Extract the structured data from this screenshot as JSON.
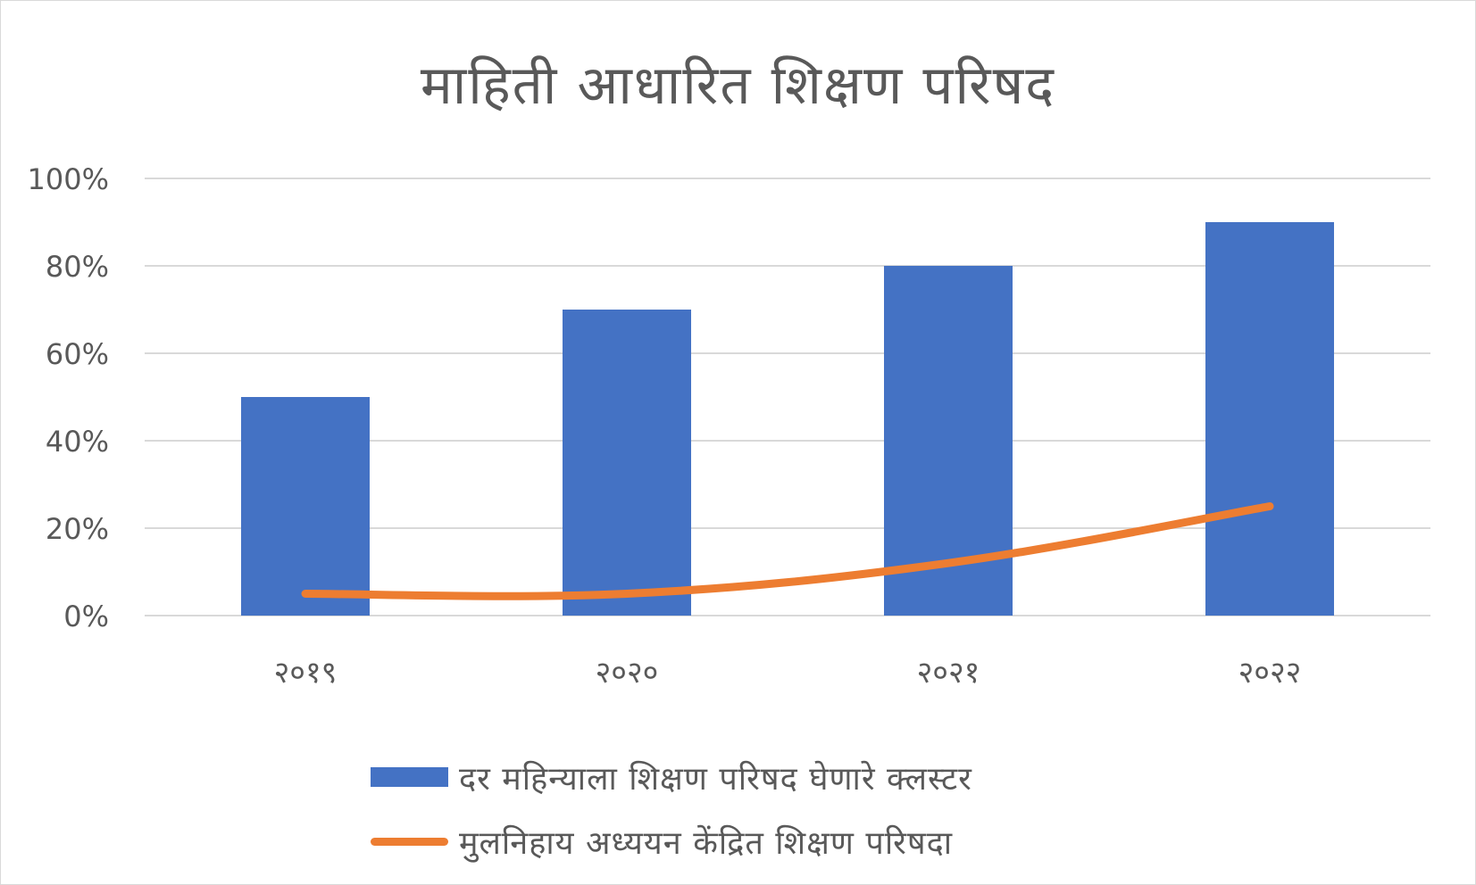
{
  "chart_data": {
    "type": "bar",
    "title": "माहिती आधारित शिक्षण परिषद",
    "categories": [
      "२०१९",
      "२०२०",
      "२०२१",
      "२०२२"
    ],
    "ylim": [
      0,
      100
    ],
    "y_ticks": [
      "0%",
      "20%",
      "40%",
      "60%",
      "80%",
      "100%"
    ],
    "y_tick_values": [
      0,
      20,
      40,
      60,
      80,
      100
    ],
    "grid": true,
    "legend_position": "bottom",
    "series": [
      {
        "name": "दर महिन्याला शिक्षण परिषद घेणारे क्लस्टर",
        "type": "bar",
        "color": "#4472C4",
        "values": [
          50,
          70,
          80,
          90
        ]
      },
      {
        "name": "मुलनिहाय अध्ययन केंद्रित शिक्षण परिषदा",
        "type": "line",
        "color": "#ED7D31",
        "values": [
          5,
          5,
          12,
          25
        ]
      }
    ]
  }
}
